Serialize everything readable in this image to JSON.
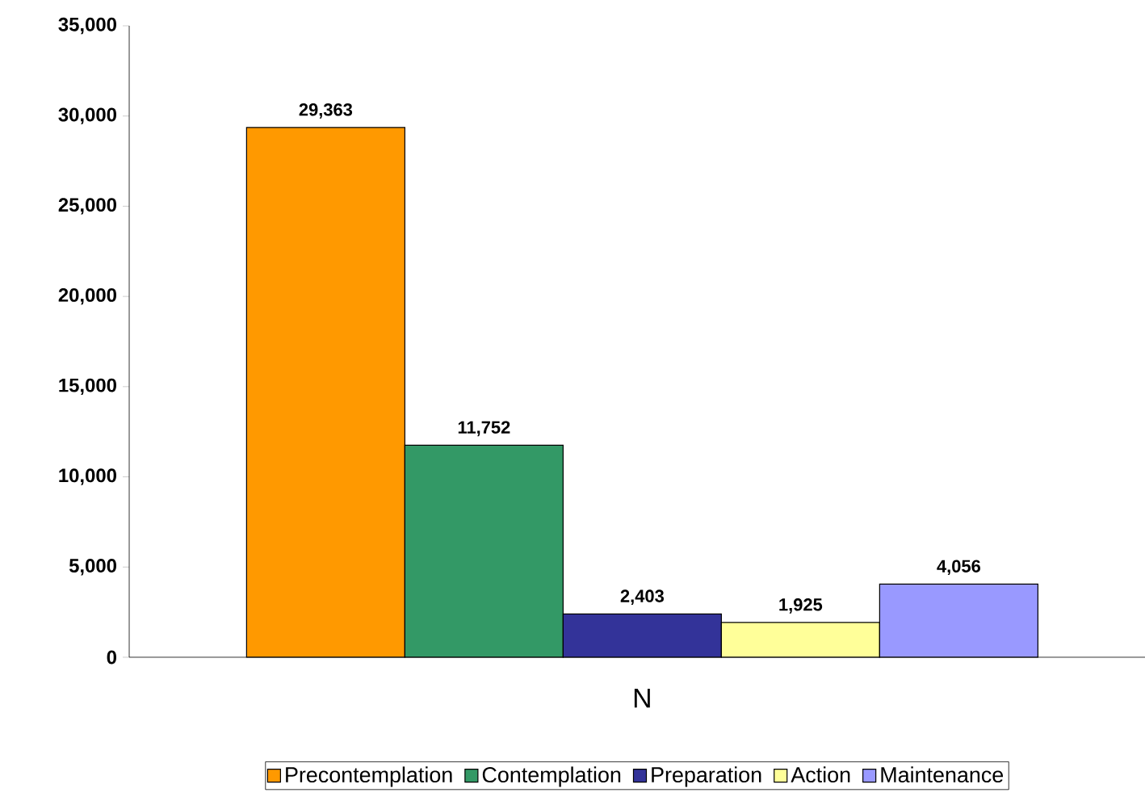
{
  "chart_data": {
    "type": "bar",
    "categories": [
      "N"
    ],
    "series": [
      {
        "name": "Precontemplation",
        "color": "#ff9900",
        "values": [
          29363
        ],
        "value_labels": [
          "29,363"
        ]
      },
      {
        "name": "Contemplation",
        "color": "#339966",
        "values": [
          11752
        ],
        "value_labels": [
          "11,752"
        ]
      },
      {
        "name": "Preparation",
        "color": "#333399",
        "values": [
          2403
        ],
        "value_labels": [
          "2,403"
        ]
      },
      {
        "name": "Action",
        "color": "#ffff99",
        "values": [
          1925
        ],
        "value_labels": [
          "1,925"
        ]
      },
      {
        "name": "Maintenance",
        "color": "#9999ff",
        "values": [
          4056
        ],
        "value_labels": [
          "4,056"
        ]
      }
    ],
    "ylim": [
      0,
      35000
    ],
    "yticks": [
      0,
      {
        "value": 5000,
        "label": "5,000"
      },
      {
        "value": 10000,
        "label": "10,000"
      },
      {
        "value": 15000,
        "label": "15,000"
      },
      {
        "value": 20000,
        "label": "20,000"
      },
      {
        "value": 25000,
        "label": "25,000"
      },
      {
        "value": 30000,
        "label": "30,000"
      },
      {
        "value": 35000,
        "label": "35,000"
      }
    ],
    "grid": false,
    "legend": "bottom"
  }
}
